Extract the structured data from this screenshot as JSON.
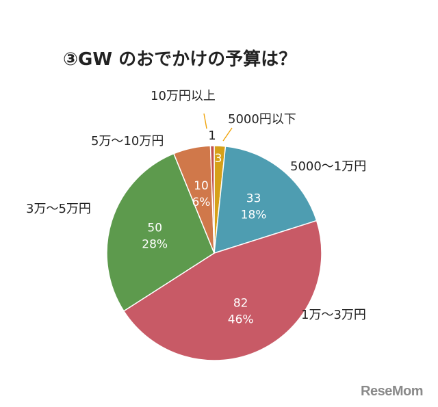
{
  "chart_data": {
    "type": "pie",
    "title": "③GW のおでかけの予算は？",
    "slices": [
      {
        "label": "5000円以下",
        "value": 3,
        "percent": null,
        "color": "#d6a019"
      },
      {
        "label": "5000～1万円",
        "value": 33,
        "percent": "18%",
        "color": "#4e9db1"
      },
      {
        "label": "1万～3万円",
        "value": 82,
        "percent": "46%",
        "color": "#c85a66"
      },
      {
        "label": "3万～5万円",
        "value": 50,
        "percent": "28%",
        "color": "#5d9a4d"
      },
      {
        "label": "5万～10万円",
        "value": 10,
        "percent": "6%",
        "color": "#d0784a"
      },
      {
        "label": "10万円以上",
        "value": 1,
        "percent": null,
        "color": "#c0504d"
      }
    ],
    "legend": "none",
    "start_angle": "12 o'clock, clockwise"
  },
  "watermark": "ReseMom"
}
